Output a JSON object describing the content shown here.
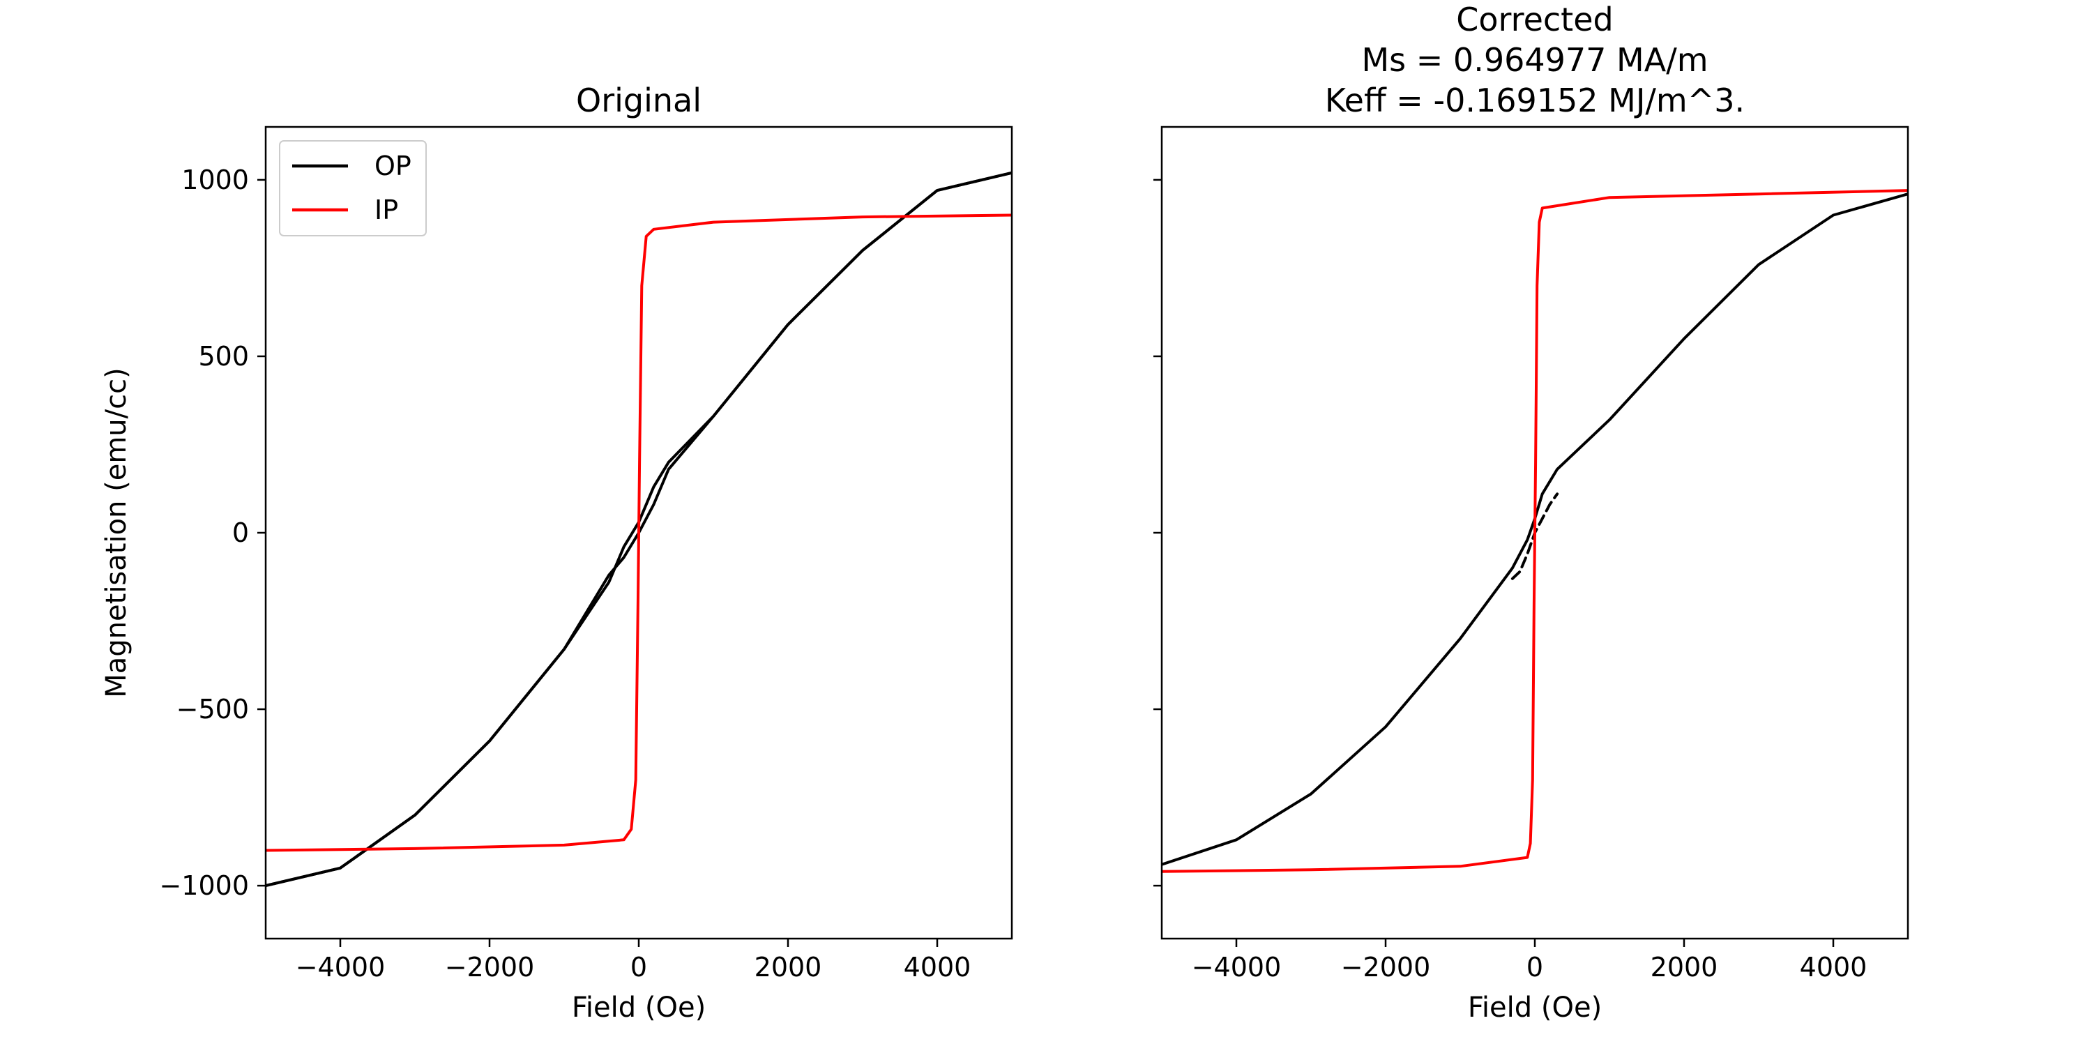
{
  "figure": {
    "ylabel": "Magnetisation (emu/cc)",
    "legend": {
      "placement": "upper-left",
      "entries": [
        {
          "label": "OP",
          "color": "#000000"
        },
        {
          "label": "IP",
          "color": "#ff0000"
        }
      ]
    }
  },
  "chart_data": [
    {
      "type": "line",
      "title_lines": [
        "Original"
      ],
      "xlabel": "Field (Oe)",
      "ylabel": "Magnetisation (emu/cc)",
      "xlim": [
        -5000,
        5000
      ],
      "ylim": [
        -1150,
        1150
      ],
      "xticks": [
        -4000,
        -2000,
        0,
        2000,
        4000
      ],
      "yticks": [
        1000,
        500,
        0,
        -500,
        -1000
      ],
      "tick_labels_x": [
        "−4000",
        "−2000",
        "0",
        "2000",
        "4000"
      ],
      "tick_labels_y": [
        "1000",
        "500",
        "0",
        "−500",
        "−1000"
      ],
      "show_y_ticklabels": true,
      "legend": true,
      "series": [
        {
          "name": "OP",
          "color": "#000000",
          "dash": "solid",
          "x": [
            -5000,
            -4000,
            -3000,
            -2000,
            -1000,
            -400,
            -200,
            0,
            200,
            400,
            1000,
            2000,
            3000,
            4000,
            5000
          ],
          "y": [
            -1000,
            -950,
            -800,
            -590,
            -330,
            -140,
            -40,
            30,
            130,
            200,
            330,
            590,
            800,
            970,
            1020
          ]
        },
        {
          "name": "OP",
          "color": "#000000",
          "dash": "solid",
          "x": [
            -5000,
            -4000,
            -3000,
            -2000,
            -1000,
            -400,
            -200,
            0,
            200,
            400,
            1000,
            2000,
            3000,
            4000,
            5000
          ],
          "y": [
            -1000,
            -950,
            -800,
            -590,
            -330,
            -120,
            -70,
            0,
            80,
            180,
            330,
            590,
            800,
            970,
            1020
          ]
        },
        {
          "name": "IP",
          "color": "#ff0000",
          "dash": "solid",
          "x": [
            -5000,
            -3000,
            -1000,
            -200,
            -100,
            -40,
            -10,
            0,
            10,
            40,
            100,
            200,
            1000,
            3000,
            5000
          ],
          "y": [
            -900,
            -895,
            -885,
            -870,
            -840,
            -700,
            -200,
            0,
            200,
            700,
            840,
            860,
            880,
            895,
            900
          ]
        }
      ]
    },
    {
      "type": "line",
      "title_lines": [
        "Corrected",
        "Ms = 0.964977 MA/m",
        "Keff = -0.169152 MJ/m^3."
      ],
      "xlabel": "Field (Oe)",
      "ylabel": "",
      "xlim": [
        -5000,
        5000
      ],
      "ylim": [
        -1150,
        1150
      ],
      "xticks": [
        -4000,
        -2000,
        0,
        2000,
        4000
      ],
      "yticks": [
        1000,
        500,
        0,
        -500,
        -1000
      ],
      "tick_labels_x": [
        "−4000",
        "−2000",
        "0",
        "2000",
        "4000"
      ],
      "tick_labels_y": [],
      "show_y_ticklabels": false,
      "legend": false,
      "series": [
        {
          "name": "OP",
          "color": "#000000",
          "dash": "solid",
          "x": [
            -5000,
            -4000,
            -3000,
            -2000,
            -1000,
            -300,
            -100,
            0,
            100,
            300,
            1000,
            2000,
            3000,
            4000,
            5000
          ],
          "y": [
            -940,
            -870,
            -740,
            -550,
            -300,
            -100,
            -20,
            40,
            110,
            180,
            320,
            550,
            760,
            900,
            960
          ]
        },
        {
          "name": "OP",
          "color": "#000000",
          "dash": "dashed",
          "x": [
            -300,
            -200,
            -100,
            0,
            100,
            200,
            300
          ],
          "y": [
            -130,
            -110,
            -60,
            0,
            40,
            80,
            110
          ]
        },
        {
          "name": "IP",
          "color": "#ff0000",
          "dash": "solid",
          "x": [
            -5000,
            -3000,
            -1000,
            -100,
            -60,
            -30,
            -10,
            0,
            10,
            30,
            60,
            100,
            1000,
            3000,
            5000
          ],
          "y": [
            -960,
            -955,
            -945,
            -920,
            -880,
            -700,
            -200,
            0,
            200,
            700,
            880,
            920,
            950,
            960,
            970
          ]
        }
      ]
    }
  ]
}
